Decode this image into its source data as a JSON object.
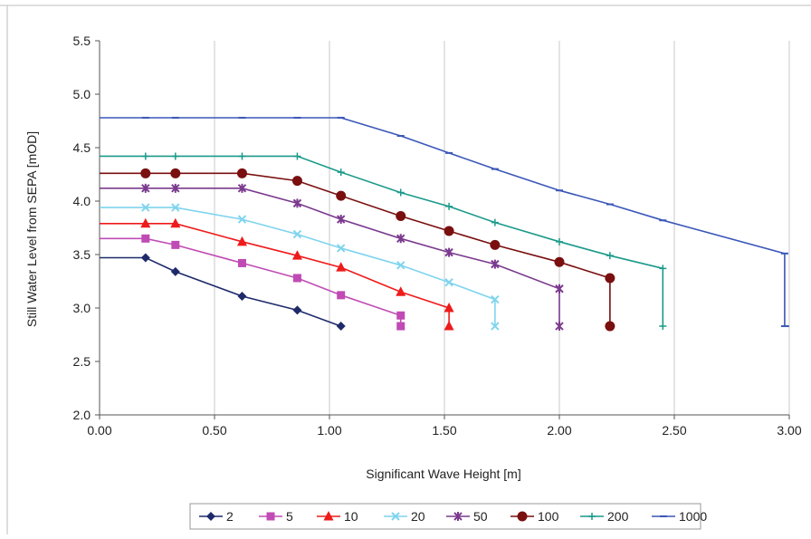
{
  "chart_data": {
    "type": "line",
    "title": "",
    "xlabel": "Significant Wave Height [m]",
    "ylabel": "Still Water Level from SEPA  [mOD]",
    "xlim": [
      0,
      3.0
    ],
    "ylim": [
      2.0,
      5.5
    ],
    "x_ticks": [
      "0.00",
      "0.50",
      "1.00",
      "1.50",
      "2.00",
      "2.50",
      "3.00"
    ],
    "y_ticks": [
      "2.0",
      "2.5",
      "3.0",
      "3.5",
      "4.0",
      "4.5",
      "5.0",
      "5.5"
    ],
    "grid": "vertical",
    "legend_position": "bottom",
    "series": [
      {
        "name": "2",
        "color": "#1f2a6b",
        "marker": "diamond",
        "x": [
          0,
          0.2,
          0.33,
          0.62,
          0.86,
          1.05
        ],
        "y": [
          3.47,
          3.47,
          3.34,
          3.11,
          2.98,
          2.83
        ]
      },
      {
        "name": "5",
        "color": "#c04bb4",
        "marker": "square",
        "x": [
          0,
          0.2,
          0.33,
          0.62,
          0.86,
          1.05,
          1.31,
          1.31
        ],
        "y": [
          3.65,
          3.65,
          3.59,
          3.42,
          3.28,
          3.12,
          2.93,
          2.83
        ]
      },
      {
        "name": "10",
        "color": "#ee1b1b",
        "marker": "triangle",
        "x": [
          0,
          0.2,
          0.33,
          0.62,
          0.86,
          1.05,
          1.31,
          1.52,
          1.52
        ],
        "y": [
          3.79,
          3.79,
          3.79,
          3.62,
          3.49,
          3.38,
          3.15,
          3.0,
          2.83
        ]
      },
      {
        "name": "20",
        "color": "#7fd4ee",
        "marker": "x",
        "x": [
          0,
          0.2,
          0.33,
          0.62,
          0.86,
          1.05,
          1.31,
          1.52,
          1.72,
          1.72
        ],
        "y": [
          3.94,
          3.94,
          3.94,
          3.83,
          3.69,
          3.56,
          3.4,
          3.24,
          3.08,
          2.83
        ]
      },
      {
        "name": "50",
        "color": "#7b3a8e",
        "marker": "star",
        "x": [
          0,
          0.2,
          0.33,
          0.62,
          0.86,
          1.05,
          1.31,
          1.52,
          1.72,
          2.0,
          2.0
        ],
        "y": [
          4.12,
          4.12,
          4.12,
          4.12,
          3.98,
          3.83,
          3.65,
          3.52,
          3.41,
          3.18,
          2.83
        ]
      },
      {
        "name": "100",
        "color": "#7a0f0f",
        "marker": "circle",
        "x": [
          0,
          0.2,
          0.33,
          0.62,
          0.86,
          1.05,
          1.31,
          1.52,
          1.72,
          2.0,
          2.22,
          2.22
        ],
        "y": [
          4.26,
          4.26,
          4.26,
          4.26,
          4.19,
          4.05,
          3.86,
          3.72,
          3.59,
          3.43,
          3.28,
          2.83
        ]
      },
      {
        "name": "200",
        "color": "#1a9a8a",
        "marker": "plus",
        "x": [
          0,
          0.2,
          0.33,
          0.62,
          0.86,
          1.05,
          1.31,
          1.52,
          1.72,
          2.0,
          2.22,
          2.45,
          2.45
        ],
        "y": [
          4.42,
          4.42,
          4.42,
          4.42,
          4.42,
          4.27,
          4.08,
          3.95,
          3.8,
          3.62,
          3.49,
          3.37,
          2.83
        ]
      },
      {
        "name": "1000",
        "color": "#3a57b8",
        "marker": "dash",
        "x": [
          0,
          0.2,
          0.33,
          0.62,
          0.86,
          1.05,
          1.31,
          1.52,
          1.72,
          2.0,
          2.22,
          2.45,
          2.98,
          2.98,
          3.0
        ],
        "y": [
          4.78,
          4.78,
          4.78,
          4.78,
          4.78,
          4.78,
          4.61,
          4.45,
          4.3,
          4.1,
          3.97,
          3.82,
          3.51,
          2.83,
          2.83
        ]
      }
    ]
  }
}
